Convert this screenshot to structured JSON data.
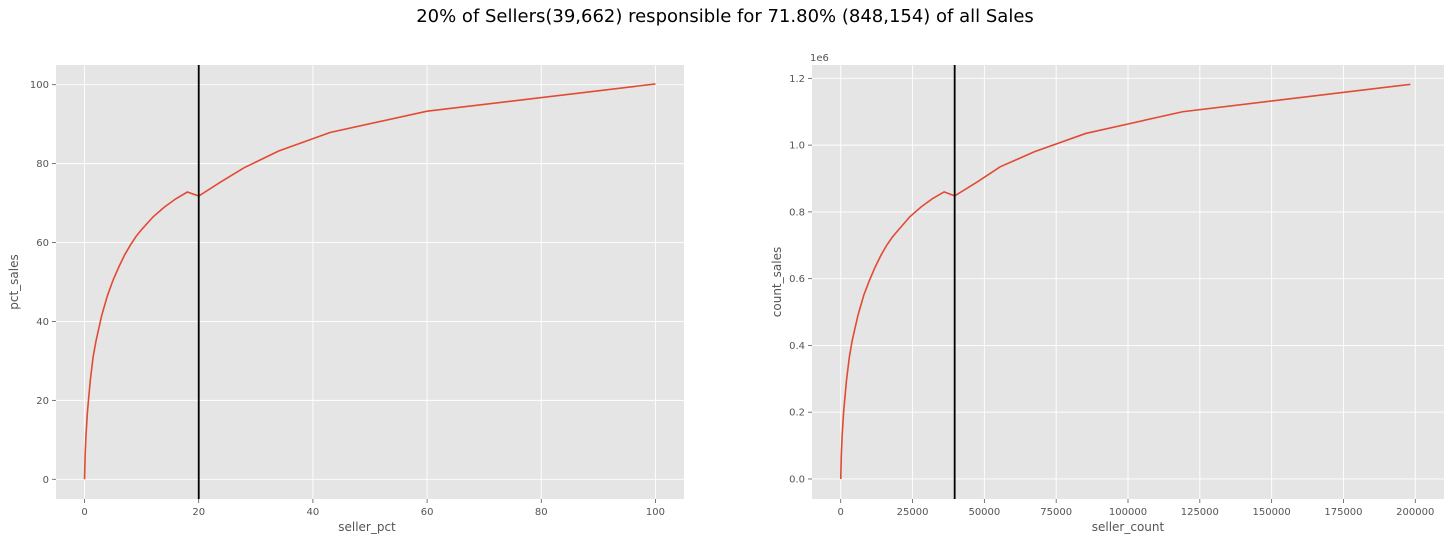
{
  "figure": {
    "suptitle": "20% of Sellers(39,662) responsible for 71.80% (848,154) of all Sales"
  },
  "style": {
    "background": "#ffffff",
    "plot_background": "#e5e5e5",
    "grid_color": "#ffffff",
    "line_color": "#e24a33",
    "vline_color": "#000000",
    "tick_text_color": "#555555"
  },
  "chart_data": [
    {
      "type": "line",
      "xlabel": "seller_pct",
      "ylabel": "pct_sales",
      "xlim": [
        -5,
        105
      ],
      "ylim": [
        -5,
        105
      ],
      "xticks": [
        0,
        20,
        40,
        60,
        80,
        100
      ],
      "yticks": [
        0,
        20,
        40,
        60,
        80,
        100
      ],
      "xtick_labels": [
        "0",
        "20",
        "40",
        "60",
        "80",
        "100"
      ],
      "ytick_labels": [
        "0",
        "20",
        "40",
        "60",
        "80",
        "100"
      ],
      "offset_text": "",
      "grid": true,
      "vline": 20,
      "series": [
        {
          "x": [
            0,
            0.1,
            0.25,
            0.5,
            1,
            1.5,
            2,
            3,
            4,
            5,
            6,
            7,
            8,
            9,
            10,
            12,
            14,
            16,
            18,
            20,
            24,
            28,
            34,
            43,
            60,
            100
          ],
          "y": [
            0,
            6,
            11,
            17,
            25,
            31,
            35,
            41.5,
            46.5,
            50.5,
            53.8,
            56.8,
            59.3,
            61.5,
            63.3,
            66.5,
            69,
            71.1,
            72.8,
            71.8,
            75.5,
            79,
            83.2,
            87.9,
            93.3,
            100.2
          ]
        }
      ]
    },
    {
      "type": "line",
      "xlabel": "seller_count",
      "ylabel": "count_sales",
      "xlim": [
        -10000,
        210000
      ],
      "ylim": [
        -0.06,
        1.24
      ],
      "xticks": [
        0,
        25000,
        50000,
        75000,
        100000,
        125000,
        150000,
        175000,
        200000
      ],
      "yticks": [
        0,
        0.2,
        0.4,
        0.6,
        0.8,
        1.0,
        1.2
      ],
      "xtick_labels": [
        "0",
        "25000",
        "50000",
        "75000",
        "100000",
        "125000",
        "150000",
        "175000",
        "200000"
      ],
      "ytick_labels": [
        "0.0",
        "0.2",
        "0.4",
        "0.6",
        "0.8",
        "1.0",
        "1.2"
      ],
      "offset_text": "1e6",
      "grid": true,
      "vline": 39662,
      "series": [
        {
          "x": [
            0,
            200,
            500,
            1000,
            2000,
            3000,
            4000,
            6000,
            8000,
            10000,
            12000,
            14000,
            16000,
            18000,
            20000,
            24000,
            28000,
            32000,
            36000,
            39662,
            47600,
            55500,
            67400,
            85300,
            119000,
            198300
          ],
          "y": [
            0,
            0.07,
            0.13,
            0.2,
            0.295,
            0.365,
            0.415,
            0.49,
            0.55,
            0.595,
            0.635,
            0.67,
            0.7,
            0.725,
            0.745,
            0.785,
            0.815,
            0.84,
            0.86,
            0.848,
            0.89,
            0.935,
            0.98,
            1.035,
            1.1,
            1.182
          ]
        }
      ]
    }
  ]
}
